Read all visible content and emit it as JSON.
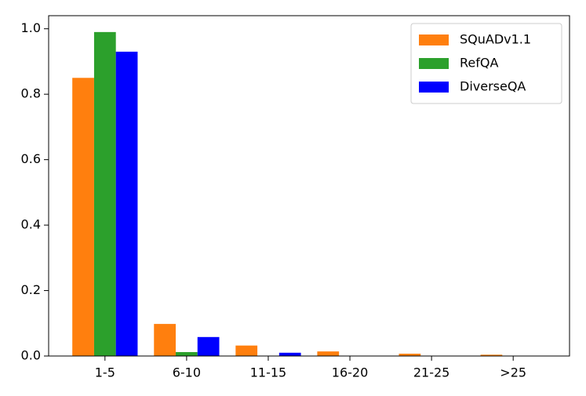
{
  "chart_data": {
    "type": "bar",
    "categories": [
      "1-5",
      "6-10",
      "11-15",
      "16-20",
      "21-25",
      ">25"
    ],
    "series": [
      {
        "name": "SQuADv1.1",
        "color": "#ff7f0e",
        "values": [
          0.85,
          0.098,
          0.032,
          0.014,
          0.007,
          0.004
        ]
      },
      {
        "name": "RefQA",
        "color": "#2ca02c",
        "values": [
          0.99,
          0.012,
          0,
          0,
          0,
          0
        ]
      },
      {
        "name": "DiverseQA",
        "color": "#0000ff",
        "values": [
          0.93,
          0.058,
          0.01,
          0.001,
          0.001,
          0.001
        ]
      }
    ],
    "ylim": [
      0,
      1.04
    ],
    "yticks": [
      {
        "value": 0,
        "label": "0.0"
      },
      0.2,
      0.4,
      0.6,
      0.8,
      {
        "value": 1,
        "label": "1.0"
      }
    ],
    "legend": "upper right"
  }
}
